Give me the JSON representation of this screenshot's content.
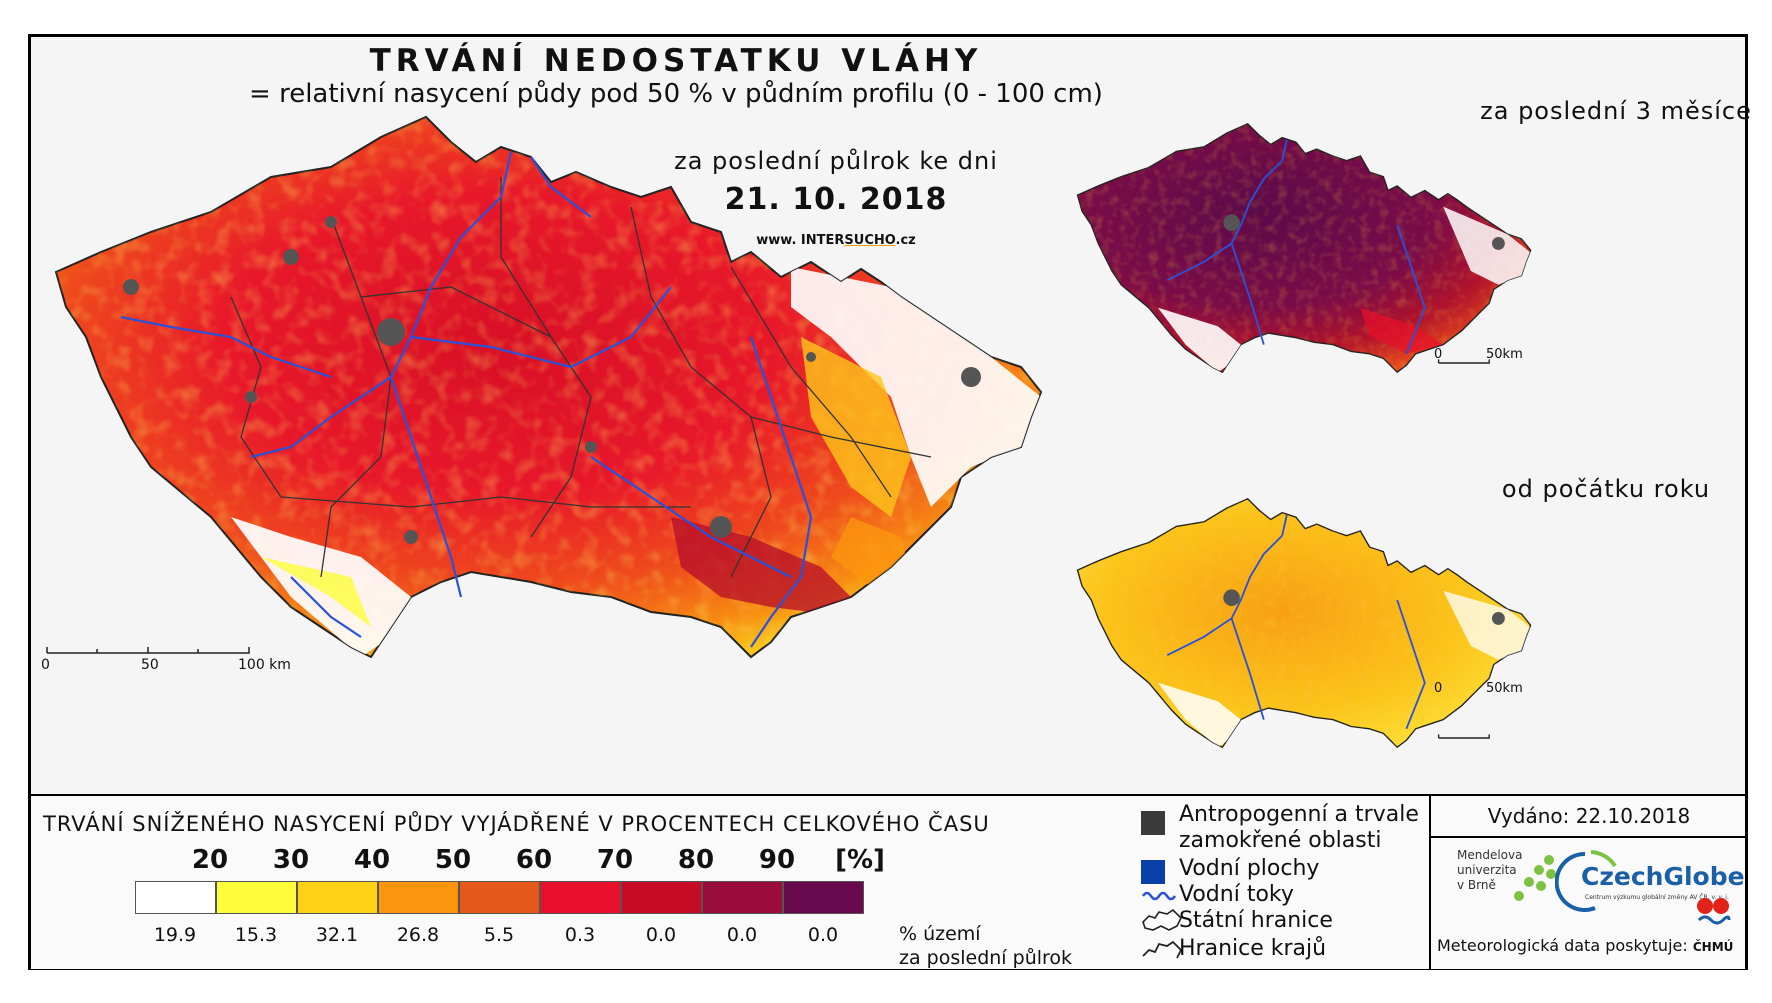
{
  "title": "TRVÁNÍ NEDOSTATKU VLÁHY",
  "subtitle": "= relativní nasycení půdy pod 50 % v půdním profilu (0 - 100 cm)",
  "main_map": {
    "period_label": "za poslední půlrok ke dni",
    "date": "21. 10. 2018",
    "website_prefix": "www. INTER",
    "website_highlight": "SUCHO",
    "website_suffix": ".cz",
    "scale": [
      "0",
      "50",
      "100 km"
    ]
  },
  "inset_3_months": {
    "title": "za poslední 3 měsíce",
    "scale": [
      "0",
      "50km"
    ]
  },
  "inset_year": {
    "title": "od počátku roku",
    "scale": [
      "0",
      "50km"
    ]
  },
  "legend": {
    "title": "TRVÁNÍ SNÍŽENÉHO NASYCENÍ PŮDY VYJÁDŘENÉ V PROCENTECH CELKOVÉHO ČASU",
    "thresholds": [
      "20",
      "30",
      "40",
      "50",
      "60",
      "70",
      "80",
      "90",
      "[%]"
    ],
    "classes": [
      {
        "color": "#ffffff",
        "percent": "19.9"
      },
      {
        "color": "#fdfd3a",
        "percent": "15.3"
      },
      {
        "color": "#fdd214",
        "percent": "32.1"
      },
      {
        "color": "#fb950e",
        "percent": "26.8"
      },
      {
        "color": "#e5581c",
        "percent": "5.5"
      },
      {
        "color": "#e8102a",
        "percent": "0.3"
      },
      {
        "color": "#c70a26",
        "percent": "0.0"
      },
      {
        "color": "#9a0c3c",
        "percent": "0.0"
      },
      {
        "color": "#6a0a4e",
        "percent": "0.0"
      }
    ],
    "percent_note_1": "% území",
    "percent_note_2": "za poslední půlrok"
  },
  "map_legend": {
    "urban_1": "Antropogenní a trvale",
    "urban_2": "zamokřené oblasti",
    "water_bodies": "Vodní plochy",
    "rivers": "Vodní toky",
    "state_border": "Státní hranice",
    "regions": "Hranice krajů"
  },
  "info": {
    "issued": "Vydáno: 22.10.2018",
    "mendel": [
      "Mendelova",
      "univerzita",
      "v Brně"
    ],
    "czechglobe": "CzechGlobe",
    "czechglobe_sub": "Centrum výzkumu globální změny AV ČR, v. v. i.",
    "meteo_prefix": "Meteorologická data poskytuje:",
    "chmu": "ČHMÚ"
  },
  "colors": {
    "river": "#2a52d8",
    "urban": "#555555",
    "water": "#0b3fa8",
    "frame": "#000000"
  }
}
